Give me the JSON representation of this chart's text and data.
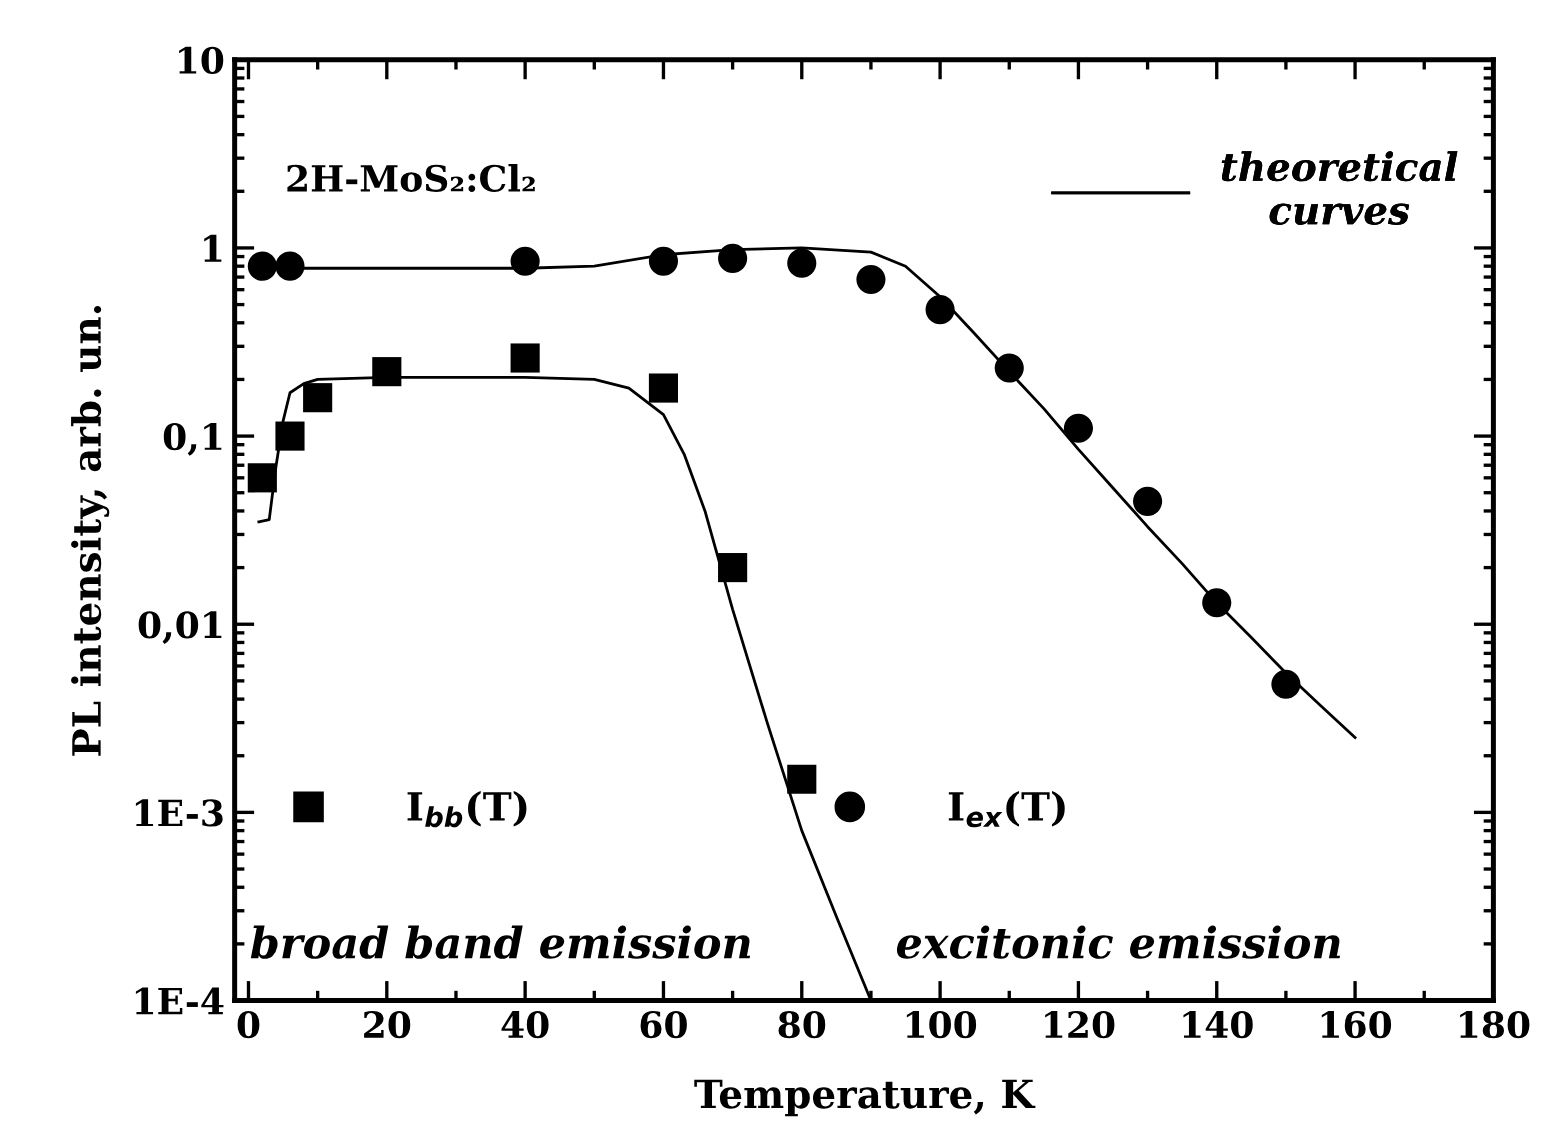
{
  "chart_data": {
    "type": "scatter",
    "xlabel": "Temperature, K",
    "ylabel": "PL intensity, arb. un.",
    "log": "y",
    "xlim": [
      -2,
      180
    ],
    "xticks": [
      0,
      20,
      40,
      60,
      80,
      100,
      120,
      140,
      160,
      180
    ],
    "ylim": [
      0.0001,
      10
    ],
    "yticks": [
      {
        "value": 0.0001,
        "label": "1E-4"
      },
      {
        "value": 0.001,
        "label": "1E-3"
      },
      {
        "value": 0.01,
        "label": "0,01"
      },
      {
        "value": 0.1,
        "label": "0,1"
      },
      {
        "value": 1,
        "label": "1"
      },
      {
        "value": 10,
        "label": "10"
      }
    ],
    "grid": false,
    "legend": "top right",
    "annotations": [
      "2H-MoS₂:Cl₂",
      "broad band emission",
      "excitonic emission"
    ],
    "series": [
      {
        "name": "I$_{bb}$(T)",
        "marker": "square",
        "color": "#000000",
        "x": [
          2,
          6,
          10,
          20,
          40,
          60,
          70,
          80
        ],
        "values": [
          0.06,
          0.1,
          0.16,
          0.22,
          0.26,
          0.18,
          0.02,
          0.0015
        ]
      },
      {
        "name": "I$_{ex}$(T)",
        "marker": "circle",
        "color": "#000000",
        "x": [
          2,
          6,
          40,
          60,
          70,
          80,
          90,
          100,
          110,
          120,
          130,
          140,
          150
        ],
        "values": [
          0.8,
          0.8,
          0.85,
          0.85,
          0.88,
          0.83,
          0.68,
          0.47,
          0.23,
          0.11,
          0.045,
          0.013,
          0.0048
        ]
      },
      {
        "name": "theoretical\ncurves",
        "type": "line",
        "line_style": "solid",
        "color": "#000000",
        "x": [
          2,
          40,
          50,
          60,
          70,
          80,
          90,
          95,
          100,
          105,
          110,
          115,
          120,
          125,
          130,
          135,
          140,
          145,
          150,
          155,
          160
        ],
        "values": [
          0.78,
          0.78,
          0.8,
          0.92,
          0.98,
          1.0,
          0.95,
          0.8,
          0.55,
          0.35,
          0.22,
          0.14,
          0.085,
          0.053,
          0.033,
          0.021,
          0.013,
          0.0085,
          0.0055,
          0.0037,
          0.0025
        ]
      },
      {
        "type": "line",
        "line_style": "solid",
        "color": "#000000",
        "x": [
          1.5,
          3,
          4,
          5,
          6,
          8,
          10,
          20,
          40,
          50,
          55,
          60,
          63,
          66,
          70,
          75,
          80,
          85,
          90
        ],
        "values": [
          0.035,
          0.036,
          0.07,
          0.12,
          0.17,
          0.19,
          0.2,
          0.205,
          0.205,
          0.2,
          0.18,
          0.13,
          0.08,
          0.04,
          0.012,
          0.003,
          0.0008,
          0.00028,
          0.0001
        ]
      }
    ]
  }
}
